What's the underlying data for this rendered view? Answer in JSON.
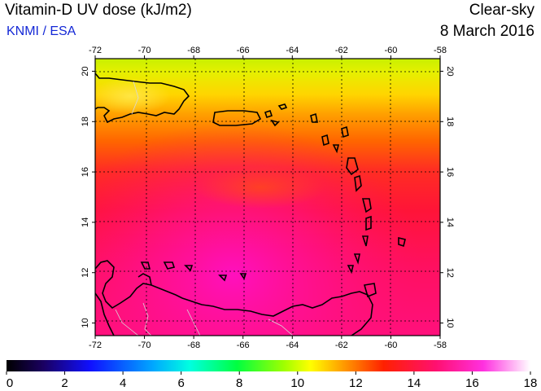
{
  "header": {
    "title": "Vitamin-D UV dose (kJ/m2)",
    "organization": "KNMI / ESA",
    "condition": "Clear-sky",
    "date": "8 March 2016"
  },
  "map": {
    "lon_ticks": [
      "-72",
      "-70",
      "-68",
      "-66",
      "-64",
      "-62",
      "-60",
      "-58"
    ],
    "lat_ticks": [
      "20",
      "18",
      "16",
      "14",
      "12",
      "10"
    ],
    "lon_range": [
      -72,
      -58
    ],
    "lat_range": [
      9.5,
      20.5
    ],
    "grid": true
  },
  "colorbar": {
    "ticks": [
      "0",
      "2",
      "4",
      "6",
      "8",
      "10",
      "12",
      "14",
      "16",
      "18"
    ],
    "range": [
      0,
      18
    ]
  }
}
